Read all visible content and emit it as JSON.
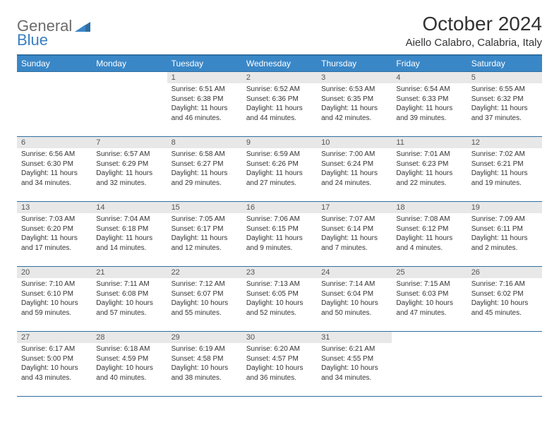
{
  "logo": {
    "general": "General",
    "blue": "Blue"
  },
  "title": "October 2024",
  "location": "Aiello Calabro, Calabria, Italy",
  "colors": {
    "header_bg": "#3a87c7",
    "header_border": "#2f6ea0",
    "daynum_bg": "#e8e8e8",
    "logo_gray": "#6b6b6b",
    "logo_blue": "#3a7fc4"
  },
  "weekdays": [
    "Sunday",
    "Monday",
    "Tuesday",
    "Wednesday",
    "Thursday",
    "Friday",
    "Saturday"
  ],
  "weeks": [
    [
      null,
      null,
      {
        "n": "1",
        "sr": "Sunrise: 6:51 AM",
        "ss": "Sunset: 6:38 PM",
        "dl": "Daylight: 11 hours and 46 minutes."
      },
      {
        "n": "2",
        "sr": "Sunrise: 6:52 AM",
        "ss": "Sunset: 6:36 PM",
        "dl": "Daylight: 11 hours and 44 minutes."
      },
      {
        "n": "3",
        "sr": "Sunrise: 6:53 AM",
        "ss": "Sunset: 6:35 PM",
        "dl": "Daylight: 11 hours and 42 minutes."
      },
      {
        "n": "4",
        "sr": "Sunrise: 6:54 AM",
        "ss": "Sunset: 6:33 PM",
        "dl": "Daylight: 11 hours and 39 minutes."
      },
      {
        "n": "5",
        "sr": "Sunrise: 6:55 AM",
        "ss": "Sunset: 6:32 PM",
        "dl": "Daylight: 11 hours and 37 minutes."
      }
    ],
    [
      {
        "n": "6",
        "sr": "Sunrise: 6:56 AM",
        "ss": "Sunset: 6:30 PM",
        "dl": "Daylight: 11 hours and 34 minutes."
      },
      {
        "n": "7",
        "sr": "Sunrise: 6:57 AM",
        "ss": "Sunset: 6:29 PM",
        "dl": "Daylight: 11 hours and 32 minutes."
      },
      {
        "n": "8",
        "sr": "Sunrise: 6:58 AM",
        "ss": "Sunset: 6:27 PM",
        "dl": "Daylight: 11 hours and 29 minutes."
      },
      {
        "n": "9",
        "sr": "Sunrise: 6:59 AM",
        "ss": "Sunset: 6:26 PM",
        "dl": "Daylight: 11 hours and 27 minutes."
      },
      {
        "n": "10",
        "sr": "Sunrise: 7:00 AM",
        "ss": "Sunset: 6:24 PM",
        "dl": "Daylight: 11 hours and 24 minutes."
      },
      {
        "n": "11",
        "sr": "Sunrise: 7:01 AM",
        "ss": "Sunset: 6:23 PM",
        "dl": "Daylight: 11 hours and 22 minutes."
      },
      {
        "n": "12",
        "sr": "Sunrise: 7:02 AM",
        "ss": "Sunset: 6:21 PM",
        "dl": "Daylight: 11 hours and 19 minutes."
      }
    ],
    [
      {
        "n": "13",
        "sr": "Sunrise: 7:03 AM",
        "ss": "Sunset: 6:20 PM",
        "dl": "Daylight: 11 hours and 17 minutes."
      },
      {
        "n": "14",
        "sr": "Sunrise: 7:04 AM",
        "ss": "Sunset: 6:18 PM",
        "dl": "Daylight: 11 hours and 14 minutes."
      },
      {
        "n": "15",
        "sr": "Sunrise: 7:05 AM",
        "ss": "Sunset: 6:17 PM",
        "dl": "Daylight: 11 hours and 12 minutes."
      },
      {
        "n": "16",
        "sr": "Sunrise: 7:06 AM",
        "ss": "Sunset: 6:15 PM",
        "dl": "Daylight: 11 hours and 9 minutes."
      },
      {
        "n": "17",
        "sr": "Sunrise: 7:07 AM",
        "ss": "Sunset: 6:14 PM",
        "dl": "Daylight: 11 hours and 7 minutes."
      },
      {
        "n": "18",
        "sr": "Sunrise: 7:08 AM",
        "ss": "Sunset: 6:12 PM",
        "dl": "Daylight: 11 hours and 4 minutes."
      },
      {
        "n": "19",
        "sr": "Sunrise: 7:09 AM",
        "ss": "Sunset: 6:11 PM",
        "dl": "Daylight: 11 hours and 2 minutes."
      }
    ],
    [
      {
        "n": "20",
        "sr": "Sunrise: 7:10 AM",
        "ss": "Sunset: 6:10 PM",
        "dl": "Daylight: 10 hours and 59 minutes."
      },
      {
        "n": "21",
        "sr": "Sunrise: 7:11 AM",
        "ss": "Sunset: 6:08 PM",
        "dl": "Daylight: 10 hours and 57 minutes."
      },
      {
        "n": "22",
        "sr": "Sunrise: 7:12 AM",
        "ss": "Sunset: 6:07 PM",
        "dl": "Daylight: 10 hours and 55 minutes."
      },
      {
        "n": "23",
        "sr": "Sunrise: 7:13 AM",
        "ss": "Sunset: 6:05 PM",
        "dl": "Daylight: 10 hours and 52 minutes."
      },
      {
        "n": "24",
        "sr": "Sunrise: 7:14 AM",
        "ss": "Sunset: 6:04 PM",
        "dl": "Daylight: 10 hours and 50 minutes."
      },
      {
        "n": "25",
        "sr": "Sunrise: 7:15 AM",
        "ss": "Sunset: 6:03 PM",
        "dl": "Daylight: 10 hours and 47 minutes."
      },
      {
        "n": "26",
        "sr": "Sunrise: 7:16 AM",
        "ss": "Sunset: 6:02 PM",
        "dl": "Daylight: 10 hours and 45 minutes."
      }
    ],
    [
      {
        "n": "27",
        "sr": "Sunrise: 6:17 AM",
        "ss": "Sunset: 5:00 PM",
        "dl": "Daylight: 10 hours and 43 minutes."
      },
      {
        "n": "28",
        "sr": "Sunrise: 6:18 AM",
        "ss": "Sunset: 4:59 PM",
        "dl": "Daylight: 10 hours and 40 minutes."
      },
      {
        "n": "29",
        "sr": "Sunrise: 6:19 AM",
        "ss": "Sunset: 4:58 PM",
        "dl": "Daylight: 10 hours and 38 minutes."
      },
      {
        "n": "30",
        "sr": "Sunrise: 6:20 AM",
        "ss": "Sunset: 4:57 PM",
        "dl": "Daylight: 10 hours and 36 minutes."
      },
      {
        "n": "31",
        "sr": "Sunrise: 6:21 AM",
        "ss": "Sunset: 4:55 PM",
        "dl": "Daylight: 10 hours and 34 minutes."
      },
      null,
      null
    ]
  ]
}
